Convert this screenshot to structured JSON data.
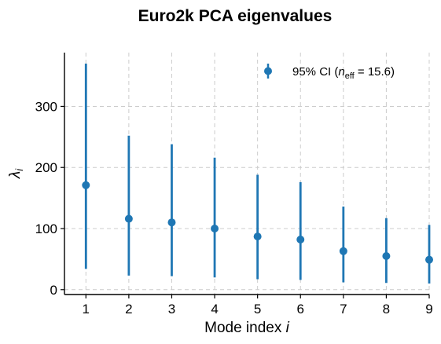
{
  "chart_data": {
    "type": "scatter",
    "title": "Euro2k PCA eigenvalues",
    "xlabel_text": "Mode index",
    "xlabel_var": "i",
    "ylabel_symbol": "λ",
    "ylabel_sub": "i",
    "legend": {
      "prefix": "95% CI (",
      "n_letter": "n",
      "n_sub": "eff",
      "suffix": " = 15.6)",
      "placement": "top-right"
    },
    "xlim": [
      0.5,
      9.0
    ],
    "ylim": [
      -8,
      388
    ],
    "xticks": [
      1,
      2,
      3,
      4,
      5,
      6,
      7,
      8,
      9
    ],
    "yticks": [
      0,
      100,
      200,
      300
    ],
    "grid": true,
    "color": "#1f77b4",
    "series": [
      {
        "x": [
          1,
          2,
          3,
          4,
          5,
          6,
          7,
          8,
          9
        ],
        "y": [
          171,
          116,
          110,
          100,
          87,
          82,
          63,
          55,
          49
        ],
        "lower": [
          34,
          23,
          22,
          20,
          17,
          16,
          12,
          11,
          10
        ],
        "upper": [
          370,
          252,
          238,
          216,
          188,
          176,
          136,
          117,
          106
        ]
      }
    ]
  }
}
